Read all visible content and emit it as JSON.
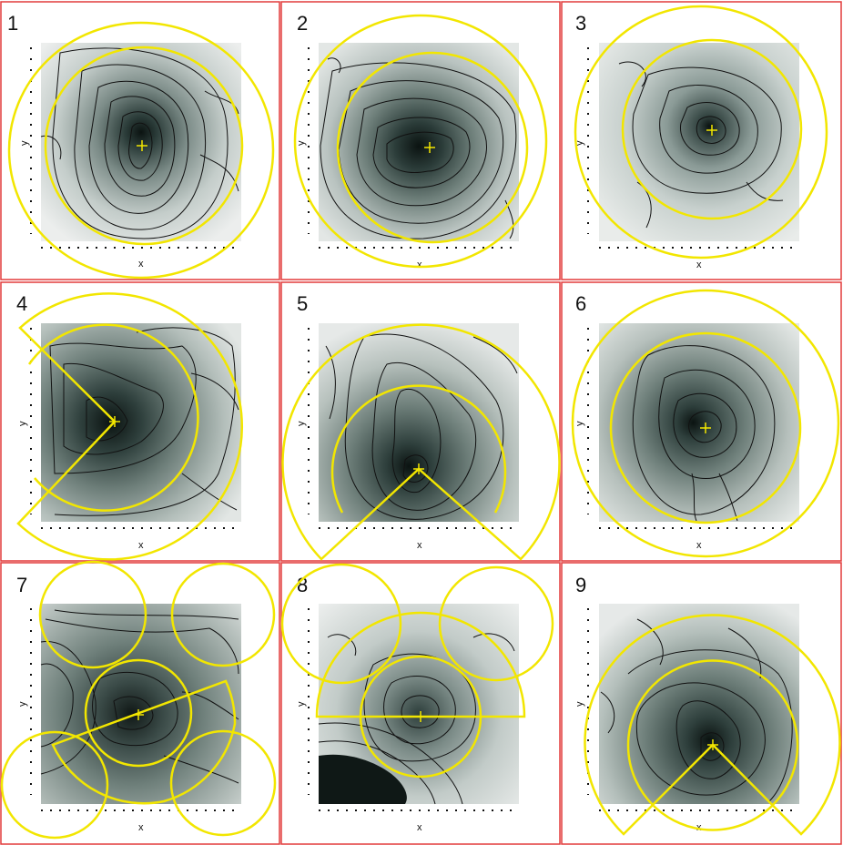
{
  "figure": {
    "panels": [
      {
        "number": "1",
        "x_label": "x",
        "y_label": "y"
      },
      {
        "number": "2",
        "x_label": "x",
        "y_label": "y"
      },
      {
        "number": "3",
        "x_label": "x",
        "y_label": "y"
      },
      {
        "number": "4",
        "x_label": "x",
        "y_label": "y"
      },
      {
        "number": "5",
        "x_label": "x",
        "y_label": "y"
      },
      {
        "number": "6",
        "x_label": "x",
        "y_label": "y"
      },
      {
        "number": "7",
        "x_label": "x",
        "y_label": "y"
      },
      {
        "number": "8",
        "x_label": "x",
        "y_label": "y"
      },
      {
        "number": "9",
        "x_label": "x",
        "y_label": "y"
      }
    ],
    "colors": {
      "panel_border": "#e23b3b",
      "overlay": "#f2e600",
      "center_marker": "#f2e600",
      "contour_line": "#111111",
      "shade_light": "#eef0ef",
      "shade_dark": "#0d1514"
    }
  }
}
